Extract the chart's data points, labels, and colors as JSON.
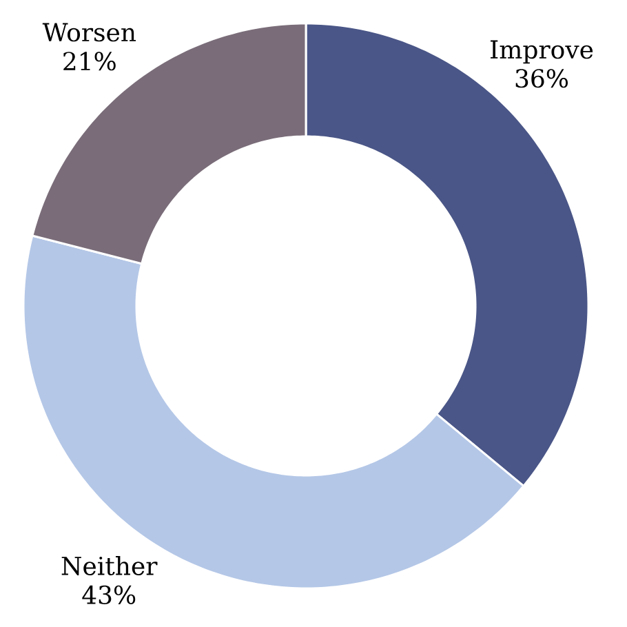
{
  "chart_data": {
    "type": "donut",
    "categories": [
      "Improve",
      "Neither",
      "Worsen"
    ],
    "values": [
      36,
      43,
      21
    ],
    "value_labels": [
      "36%",
      "43%",
      "21%"
    ],
    "colors": [
      "#4a5687",
      "#b4c7e7",
      "#7a6d79"
    ]
  }
}
